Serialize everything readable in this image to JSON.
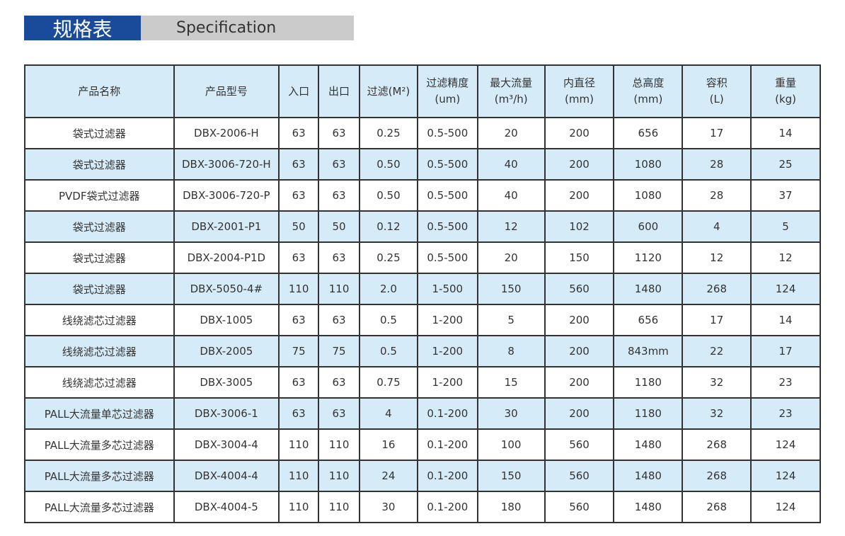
{
  "title": {
    "cn": "规格表",
    "en": "Specification"
  },
  "colors": {
    "title_bg": "#1a4a9a",
    "subtitle_bg": "#cbcbcb",
    "header_bg": "#d5ebf8",
    "alt_row_bg": "#d5ebf8"
  },
  "headers": [
    {
      "l1": "产品名称",
      "l2": ""
    },
    {
      "l1": "产品型号",
      "l2": ""
    },
    {
      "l1": "入口",
      "l2": ""
    },
    {
      "l1": "出口",
      "l2": ""
    },
    {
      "l1": "过滤(M²)",
      "l2": ""
    },
    {
      "l1": "过滤精度",
      "l2": "(um)"
    },
    {
      "l1": "最大流量",
      "l2": "(m³/h)"
    },
    {
      "l1": "内直径",
      "l2": "(mm)"
    },
    {
      "l1": "总高度",
      "l2": "(mm)"
    },
    {
      "l1": "容积",
      "l2": "(L)"
    },
    {
      "l1": "重量",
      "l2": "(kg)"
    }
  ],
  "rows": [
    [
      "袋式过滤器",
      "DBX-2006-H",
      "63",
      "63",
      "0.25",
      "0.5-500",
      "20",
      "200",
      "656",
      "17",
      "14"
    ],
    [
      "袋式过滤器",
      "DBX-3006-720-H",
      "63",
      "63",
      "0.50",
      "0.5-500",
      "40",
      "200",
      "1080",
      "28",
      "25"
    ],
    [
      "PVDF袋式过滤器",
      "DBX-3006-720-P",
      "63",
      "63",
      "0.50",
      "0.5-500",
      "40",
      "200",
      "1080",
      "28",
      "37"
    ],
    [
      "袋式过滤器",
      "DBX-2001-P1",
      "50",
      "50",
      "0.12",
      "0.5-500",
      "12",
      "102",
      "600",
      "4",
      "5"
    ],
    [
      "袋式过滤器",
      "DBX-2004-P1D",
      "63",
      "63",
      "0.25",
      "0.5-500",
      "20",
      "150",
      "1120",
      "12",
      "12"
    ],
    [
      "袋式过滤器",
      "DBX-5050-4#",
      "110",
      "110",
      "2.0",
      "1-500",
      "150",
      "560",
      "1480",
      "268",
      "124"
    ],
    [
      "线绕滤芯过滤器",
      "DBX-1005",
      "63",
      "63",
      "0.5",
      "1-200",
      "5",
      "200",
      "656",
      "17",
      "14"
    ],
    [
      "线绕滤芯过滤器",
      "DBX-2005",
      "75",
      "75",
      "0.5",
      "1-200",
      "8",
      "200",
      "843mm",
      "22",
      "17"
    ],
    [
      "线绕滤芯过滤器",
      "DBX-3005",
      "63",
      "63",
      "0.75",
      "1-200",
      "15",
      "200",
      "1180",
      "32",
      "23"
    ],
    [
      "PALL大流量单芯过滤器",
      "DBX-3006-1",
      "63",
      "63",
      "4",
      "0.1-200",
      "30",
      "200",
      "1180",
      "32",
      "23"
    ],
    [
      "PALL大流量多芯过滤器",
      "DBX-3004-4",
      "110",
      "110",
      "16",
      "0.1-200",
      "100",
      "560",
      "1480",
      "268",
      "124"
    ],
    [
      "PALL大流量多芯过滤器",
      "DBX-4004-4",
      "110",
      "110",
      "24",
      "0.1-200",
      "150",
      "560",
      "1480",
      "268",
      "124"
    ],
    [
      "PALL大流量多芯过滤器",
      "DBX-4004-5",
      "110",
      "110",
      "30",
      "0.1-200",
      "180",
      "560",
      "1480",
      "268",
      "124"
    ]
  ]
}
